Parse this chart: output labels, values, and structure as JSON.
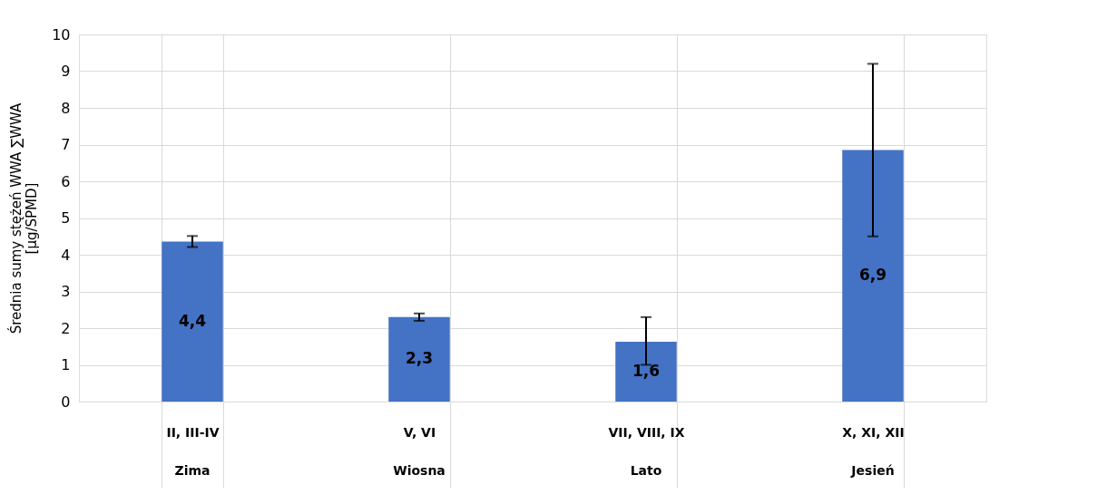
{
  "chart_data": {
    "type": "bar",
    "ylabel": "Średnia sumy stężeń WWA  ∑WWA\n[µg/SPMD]",
    "categories": [
      "II, III-IV",
      "V, VI",
      "VII, VIII, IX",
      "X, XI, XII"
    ],
    "values": [
      4.36,
      2.3,
      1.63,
      6.85
    ],
    "color": "#4472c4",
    "errors": [
      0.15,
      0.1,
      [
        1.0,
        2.3
      ],
      [
        4.5,
        9.2
      ]
    ],
    "value_labels": [
      "4,4",
      "2,3",
      "1,6",
      "6,9"
    ],
    "annotations": [
      "Zima",
      "Wiosna",
      "Lato",
      "Jesień"
    ],
    "ylim": [
      0,
      10
    ],
    "yticks": [
      0,
      1,
      2,
      3,
      4,
      5,
      6,
      7,
      8,
      9,
      10
    ],
    "grid": true
  }
}
